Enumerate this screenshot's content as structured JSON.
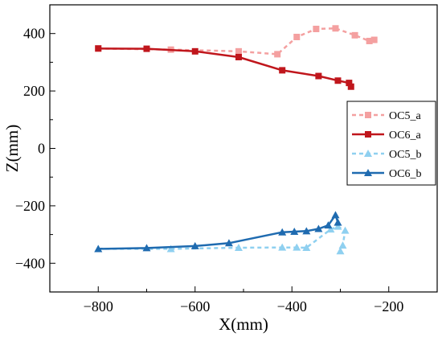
{
  "chart_data": {
    "type": "line",
    "xlabel": "X(mm)",
    "ylabel": "Z(mm)",
    "xlim": [
      -900,
      -100
    ],
    "ylim": [
      -500,
      500
    ],
    "x_ticks": [
      -800,
      -600,
      -400,
      -200
    ],
    "y_ticks": [
      -400,
      -200,
      0,
      200,
      400
    ],
    "grid": false,
    "legend_position": "right",
    "series": [
      {
        "name": "OC5_a",
        "color": "#f4a0a0",
        "line_style": "dashed",
        "marker": "square",
        "x": [
          -800,
          -650,
          -510,
          -430,
          -390,
          -350,
          -310,
          -270,
          -240,
          -230
        ],
        "y": [
          348,
          344,
          338,
          328,
          388,
          416,
          418,
          394,
          374,
          378
        ]
      },
      {
        "name": "OC6_a",
        "color": "#c0161c",
        "line_style": "solid",
        "marker": "square",
        "x": [
          -800,
          -700,
          -600,
          -510,
          -420,
          -345,
          -305,
          -282,
          -278
        ],
        "y": [
          348,
          347,
          338,
          318,
          272,
          252,
          236,
          228,
          215
        ]
      },
      {
        "name": "OC5_b",
        "color": "#8fd0f0",
        "line_style": "dashed",
        "marker": "triangle",
        "x": [
          -800,
          -650,
          -510,
          -420,
          -390,
          -370,
          -320,
          -305,
          -290,
          -295,
          -300
        ],
        "y": [
          -350,
          -350,
          -346,
          -345,
          -345,
          -346,
          -282,
          -272,
          -286,
          -338,
          -358
        ]
      },
      {
        "name": "OC6_b",
        "color": "#1f6bb0",
        "line_style": "solid",
        "marker": "triangle",
        "x": [
          -800,
          -700,
          -600,
          -530,
          -420,
          -395,
          -370,
          -345,
          -325,
          -310,
          -305
        ],
        "y": [
          -350,
          -347,
          -340,
          -330,
          -292,
          -290,
          -288,
          -280,
          -268,
          -232,
          -258
        ]
      }
    ]
  }
}
